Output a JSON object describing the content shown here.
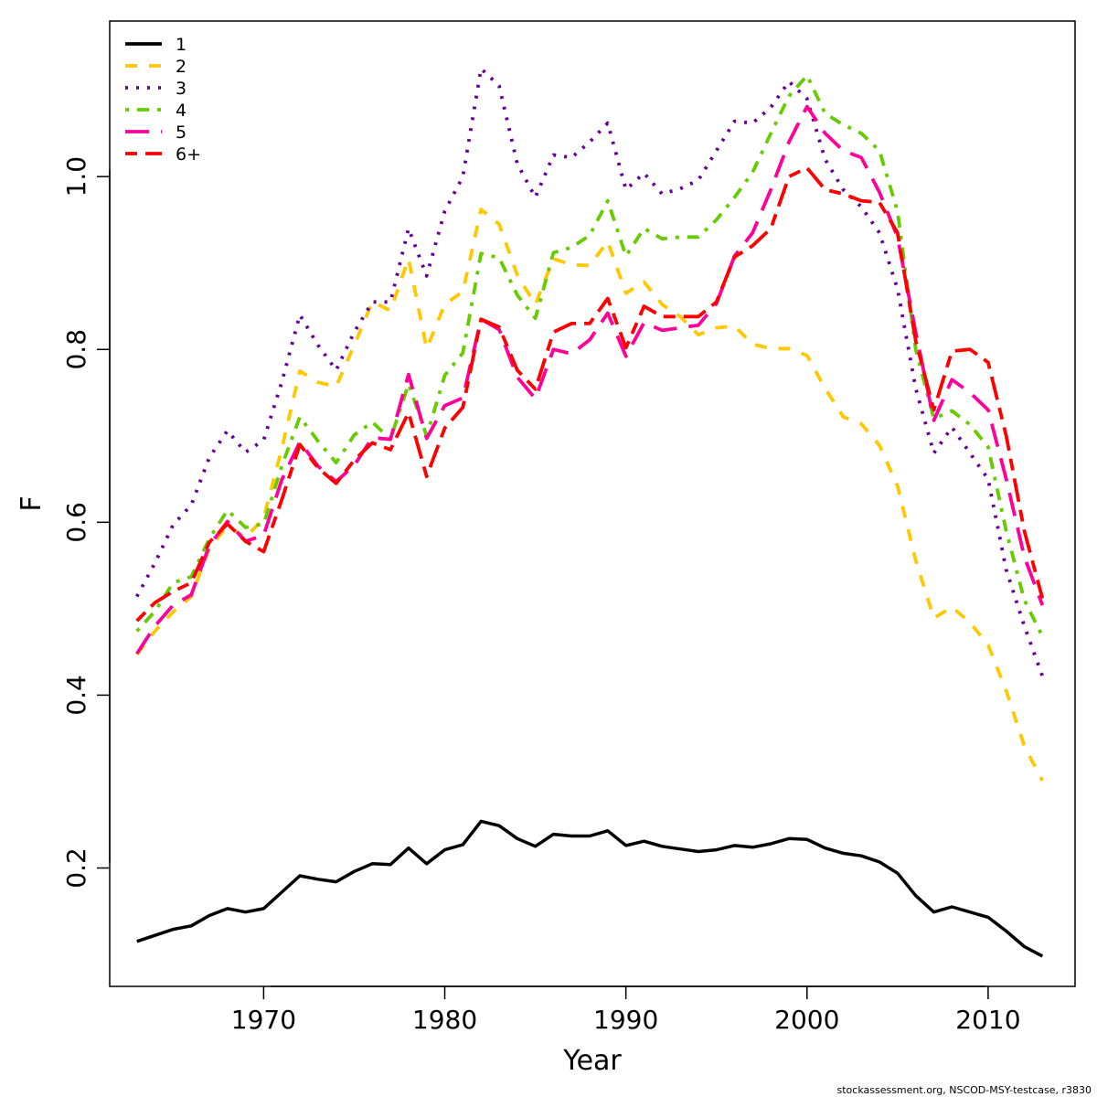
{
  "chart_data": {
    "type": "line",
    "title": "",
    "xlabel": "Year",
    "ylabel": "F",
    "xlim": [
      1961.5,
      2014.8
    ],
    "ylim": [
      0.063,
      1.18
    ],
    "x_ticks": [
      "1970",
      "1980",
      "1990",
      "2000",
      "2010"
    ],
    "y_ticks": [
      "0.2",
      "0.4",
      "0.6",
      "0.8",
      "1.0"
    ],
    "legend_position": "top-left",
    "x": [
      1963,
      1964,
      1965,
      1966,
      1967,
      1968,
      1969,
      1970,
      1971,
      1972,
      1973,
      1974,
      1975,
      1976,
      1977,
      1978,
      1979,
      1980,
      1981,
      1982,
      1983,
      1984,
      1985,
      1986,
      1987,
      1988,
      1989,
      1990,
      1991,
      1992,
      1993,
      1994,
      1995,
      1996,
      1997,
      1998,
      1999,
      2000,
      2001,
      2002,
      2003,
      2004,
      2005,
      2006,
      2007,
      2008,
      2009,
      2010,
      2011,
      2012,
      2013
    ],
    "series": [
      {
        "name": "1",
        "color": "#000000",
        "dash": "solid",
        "values": [
          0.115,
          0.122,
          0.129,
          0.133,
          0.145,
          0.153,
          0.149,
          0.153,
          0.172,
          0.191,
          0.187,
          0.184,
          0.196,
          0.205,
          0.204,
          0.223,
          0.205,
          0.221,
          0.227,
          0.254,
          0.249,
          0.234,
          0.225,
          0.239,
          0.237,
          0.237,
          0.243,
          0.226,
          0.231,
          0.225,
          0.222,
          0.219,
          0.221,
          0.226,
          0.224,
          0.228,
          0.234,
          0.233,
          0.223,
          0.217,
          0.214,
          0.207,
          0.194,
          0.168,
          0.149,
          0.155,
          0.149,
          0.143,
          0.127,
          0.109,
          0.098
        ]
      },
      {
        "name": "2",
        "color": "#FFC800",
        "dash": "short",
        "values": [
          0.447,
          0.474,
          0.496,
          0.514,
          0.57,
          0.596,
          0.582,
          0.605,
          0.685,
          0.775,
          0.762,
          0.757,
          0.805,
          0.855,
          0.845,
          0.905,
          0.801,
          0.852,
          0.867,
          0.962,
          0.945,
          0.886,
          0.852,
          0.905,
          0.898,
          0.897,
          0.925,
          0.865,
          0.878,
          0.852,
          0.838,
          0.817,
          0.825,
          0.827,
          0.806,
          0.801,
          0.801,
          0.793,
          0.755,
          0.722,
          0.714,
          0.689,
          0.642,
          0.556,
          0.489,
          0.502,
          0.484,
          0.458,
          0.405,
          0.341,
          0.301
        ]
      },
      {
        "name": "3",
        "color": "#660099",
        "dash": "dotted",
        "values": [
          0.514,
          0.553,
          0.597,
          0.62,
          0.675,
          0.706,
          0.681,
          0.695,
          0.762,
          0.84,
          0.805,
          0.776,
          0.82,
          0.855,
          0.855,
          0.94,
          0.885,
          0.96,
          1.0,
          1.125,
          1.105,
          1.015,
          0.976,
          1.025,
          1.022,
          1.04,
          1.062,
          0.985,
          1.004,
          0.98,
          0.986,
          0.996,
          1.03,
          1.064,
          1.062,
          1.08,
          1.11,
          1.09,
          1.02,
          0.985,
          0.965,
          0.935,
          0.87,
          0.755,
          0.68,
          0.71,
          0.68,
          0.65,
          0.545,
          0.48,
          0.422
        ]
      },
      {
        "name": "4",
        "color": "#66CC00",
        "dash": "dashdot",
        "values": [
          0.474,
          0.497,
          0.53,
          0.537,
          0.581,
          0.614,
          0.594,
          0.598,
          0.665,
          0.722,
          0.694,
          0.669,
          0.701,
          0.716,
          0.696,
          0.76,
          0.7,
          0.77,
          0.796,
          0.911,
          0.906,
          0.863,
          0.836,
          0.912,
          0.918,
          0.932,
          0.972,
          0.908,
          0.94,
          0.928,
          0.93,
          0.93,
          0.95,
          0.976,
          1.005,
          1.05,
          1.093,
          1.117,
          1.073,
          1.06,
          1.05,
          1.03,
          0.96,
          0.8,
          0.72,
          0.729,
          0.713,
          0.687,
          0.59,
          0.51,
          0.468
        ]
      },
      {
        "name": "5",
        "color": "#FF0099",
        "dash": "longdash",
        "values": [
          0.448,
          0.48,
          0.504,
          0.516,
          0.573,
          0.601,
          0.578,
          0.585,
          0.649,
          0.693,
          0.665,
          0.647,
          0.666,
          0.698,
          0.696,
          0.771,
          0.697,
          0.735,
          0.744,
          0.835,
          0.823,
          0.768,
          0.743,
          0.8,
          0.795,
          0.811,
          0.842,
          0.792,
          0.831,
          0.822,
          0.825,
          0.828,
          0.853,
          0.908,
          0.935,
          0.985,
          1.04,
          1.081,
          1.05,
          1.03,
          1.022,
          0.982,
          0.93,
          0.82,
          0.718,
          0.765,
          0.75,
          0.73,
          0.65,
          0.56,
          0.504
        ]
      },
      {
        "name": "6+",
        "color": "#FF0000",
        "dash": "twodash",
        "values": [
          0.486,
          0.507,
          0.52,
          0.53,
          0.577,
          0.598,
          0.578,
          0.566,
          0.626,
          0.69,
          0.663,
          0.645,
          0.672,
          0.692,
          0.684,
          0.727,
          0.653,
          0.709,
          0.733,
          0.835,
          0.826,
          0.776,
          0.754,
          0.82,
          0.83,
          0.83,
          0.859,
          0.802,
          0.85,
          0.838,
          0.838,
          0.838,
          0.855,
          0.907,
          0.92,
          0.94,
          1.0,
          1.01,
          0.985,
          0.98,
          0.972,
          0.97,
          0.935,
          0.81,
          0.73,
          0.798,
          0.8,
          0.785,
          0.7,
          0.59,
          0.512
        ]
      }
    ]
  },
  "footer": "stockassessment.org, NSCOD-MSY-testcase, r3830"
}
